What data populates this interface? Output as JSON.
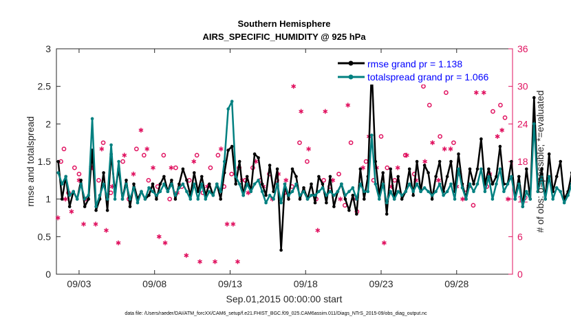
{
  "chart_data": {
    "type": "line",
    "title": "Southern Hemisphere",
    "subtitle": "AIRS_SPECIFIC_HUMIDITY @ 925 hPa",
    "xlabel": "Sep.01,2015 00:00:00 start",
    "ylabel": "rmse and totalspread",
    "y2label": "# of obs: o=possible; *=evaluated",
    "footnote": "data file: /Users/raeder/DAI/ATM_forcXX/CAM6_setup/f.e21.FHIST_BGC.f09_025.CAM6assim.011/Diags_NTrS_2015-09/obs_diag_output.nc",
    "xlim": [
      1.5,
      31.7
    ],
    "ylim": [
      0,
      3
    ],
    "y2lim": [
      0,
      36
    ],
    "xticks": [
      3,
      8,
      13,
      18,
      23,
      28
    ],
    "xticklabels": [
      "09/03",
      "09/08",
      "09/13",
      "09/18",
      "09/23",
      "09/28"
    ],
    "yticks": [
      0,
      0.5,
      1,
      1.5,
      2,
      2.5,
      3
    ],
    "yticklabels": [
      "0",
      "0.5",
      "1",
      "1.5",
      "2",
      "2.5",
      "3"
    ],
    "y2ticks": [
      0,
      6,
      12,
      18,
      24,
      30,
      36
    ],
    "y2ticklabels": [
      "0",
      "6",
      "12",
      "18",
      "24",
      "30",
      "36"
    ],
    "legend": {
      "placement": "top-right",
      "entries": [
        "rmse grand pr = 1.138",
        "totalspread grand pr = 1.066"
      ]
    },
    "colors": {
      "rmse": "#000000",
      "totalspread": "#008080",
      "obs": "#e0115f",
      "legend_text": "#0000ff",
      "axis": "#262626"
    },
    "x_start": 1.625,
    "x_step": 0.25,
    "series": [
      {
        "name": "rmse",
        "values": [
          1.5,
          1.0,
          1.3,
          0.9,
          1.1,
          1.0,
          1.25,
          0.9,
          1.0,
          1.65,
          0.85,
          1.0,
          1.35,
          0.85,
          1.6,
          1.1,
          1.4,
          1.0,
          1.25,
          0.9,
          1.2,
          1.0,
          1.1,
          1.0,
          1.05,
          1.2,
          1.0,
          1.2,
          1.3,
          1.1,
          1.25,
          1.0,
          1.2,
          1.4,
          1.25,
          1.05,
          1.35,
          1.1,
          1.3,
          1.05,
          1.2,
          1.05,
          1.2,
          1.0,
          1.35,
          1.65,
          1.7,
          1.2,
          1.5,
          1.05,
          1.3,
          1.1,
          1.6,
          1.55,
          1.2,
          1.05,
          1.45,
          1.1,
          1.4,
          0.32,
          1.2,
          1.0,
          1.4,
          1.3,
          1.0,
          1.15,
          1.0,
          1.2,
          0.95,
          1.3,
          1.2,
          0.95,
          1.3,
          0.9,
          1.1,
          1.2,
          1.0,
          0.85,
          1.05,
          0.8,
          1.4,
          1.0,
          1.3,
          2.75,
          1.5,
          1.05,
          1.35,
          0.8,
          1.4,
          1.0,
          1.3,
          1.0,
          1.1,
          1.4,
          1.05,
          1.5,
          1.1,
          1.45,
          1.35,
          1.0,
          1.3,
          1.5,
          1.1,
          1.3,
          1.5,
          1.1,
          1.6,
          1.2,
          1.0,
          1.4,
          1.2,
          1.4,
          1.8,
          1.2,
          1.4,
          1.2,
          1.3,
          1.7,
          1.2,
          1.2,
          1.5,
          1.0,
          1.3,
          0.9,
          1.4,
          1.0,
          2.35,
          1.1,
          1.4,
          1.0,
          1.6,
          1.1,
          1.3,
          1.5,
          1.0,
          1.1,
          1.35,
          0.95,
          1.3,
          0.9,
          1.2,
          0.85,
          1.25,
          0.95,
          1.2,
          0.75,
          1.25,
          0.85,
          1.2,
          0.8,
          1.15
        ]
      },
      {
        "name": "totalspread",
        "values": [
          1.35,
          1.2,
          1.3,
          1.05,
          1.1,
          1.0,
          1.2,
          1.0,
          1.05,
          2.07,
          0.9,
          1.05,
          1.2,
          1.0,
          1.72,
          1.0,
          1.5,
          1.0,
          1.2,
          1.0,
          1.15,
          0.95,
          1.1,
          1.0,
          1.15,
          1.1,
          1.05,
          1.1,
          1.2,
          1.1,
          1.2,
          1.05,
          1.15,
          1.2,
          1.1,
          1.0,
          1.2,
          1.0,
          1.2,
          1.0,
          1.1,
          1.05,
          1.2,
          1.1,
          1.5,
          2.2,
          2.3,
          1.3,
          1.2,
          1.05,
          1.2,
          1.1,
          1.2,
          1.25,
          1.1,
          0.95,
          1.05,
          1.0,
          1.2,
          0.95,
          1.2,
          1.05,
          1.1,
          1.2,
          1.05,
          1.1,
          1.0,
          1.05,
          1.05,
          1.1,
          1.15,
          1.05,
          1.1,
          1.05,
          1.1,
          1.2,
          1.05,
          1.1,
          1.15,
          1.0,
          1.2,
          1.1,
          1.1,
          1.85,
          1.2,
          1.0,
          1.2,
          0.95,
          1.1,
          1.0,
          1.1,
          1.05,
          1.1,
          1.2,
          1.1,
          1.2,
          1.1,
          1.15,
          1.1,
          1.05,
          1.1,
          1.2,
          1.05,
          1.1,
          1.2,
          1.0,
          1.4,
          1.15,
          1.0,
          1.2,
          1.1,
          1.2,
          1.4,
          1.1,
          1.3,
          1.0,
          1.2,
          1.4,
          1.1,
          1.2,
          1.3,
          1.0,
          1.2,
          0.9,
          1.1,
          1.0,
          2.0,
          1.1,
          1.3,
          1.0,
          1.3,
          1.0,
          1.15,
          1.1,
          0.95,
          1.05,
          1.2,
          0.9,
          1.1,
          0.95,
          1.15,
          0.9,
          1.1,
          0.95,
          1.6,
          0.9,
          1.3,
          1.0,
          1.2,
          1.1,
          1.75
        ]
      }
    ],
    "obs_possible": [
      {
        "x": 1.8,
        "y": 18
      },
      {
        "x": 2.0,
        "y": 20
      },
      {
        "x": 2.3,
        "y": 13
      },
      {
        "x": 2.7,
        "y": 17
      },
      {
        "x": 3.0,
        "y": 16
      },
      {
        "x": 3.4,
        "y": 12
      },
      {
        "x": 3.9,
        "y": 17
      },
      {
        "x": 4.3,
        "y": 15
      },
      {
        "x": 4.6,
        "y": 21
      },
      {
        "x": 5.1,
        "y": 13
      },
      {
        "x": 5.9,
        "y": 18
      },
      {
        "x": 6.3,
        "y": 12
      },
      {
        "x": 6.8,
        "y": 20
      },
      {
        "x": 7.3,
        "y": 19
      },
      {
        "x": 7.6,
        "y": 15
      },
      {
        "x": 8.2,
        "y": 14
      },
      {
        "x": 8.6,
        "y": 19
      },
      {
        "x": 9.0,
        "y": 12
      },
      {
        "x": 9.4,
        "y": 17
      },
      {
        "x": 9.8,
        "y": 14
      },
      {
        "x": 10.3,
        "y": 15
      },
      {
        "x": 10.8,
        "y": 19
      },
      {
        "x": 11.2,
        "y": 13
      },
      {
        "x": 11.7,
        "y": 17
      },
      {
        "x": 12.2,
        "y": 19
      },
      {
        "x": 12.6,
        "y": 14
      },
      {
        "x": 13.1,
        "y": 16
      },
      {
        "x": 13.6,
        "y": 17
      },
      {
        "x": 14.0,
        "y": 15
      },
      {
        "x": 14.5,
        "y": 17
      },
      {
        "x": 15.0,
        "y": 15
      },
      {
        "x": 15.6,
        "y": 16
      },
      {
        "x": 16.1,
        "y": 15
      },
      {
        "x": 16.6,
        "y": 13
      },
      {
        "x": 17.1,
        "y": 14
      },
      {
        "x": 17.6,
        "y": 21
      },
      {
        "x": 18.1,
        "y": 18
      },
      {
        "x": 18.7,
        "y": 12
      },
      {
        "x": 19.2,
        "y": 15
      },
      {
        "x": 19.6,
        "y": 14
      },
      {
        "x": 20.2,
        "y": 16
      },
      {
        "x": 20.6,
        "y": 11
      },
      {
        "x": 21.0,
        "y": 21
      },
      {
        "x": 21.4,
        "y": 10
      },
      {
        "x": 22.0,
        "y": 18
      },
      {
        "x": 22.5,
        "y": 15
      },
      {
        "x": 23.0,
        "y": 22
      },
      {
        "x": 23.4,
        "y": 17
      },
      {
        "x": 23.9,
        "y": 15
      },
      {
        "x": 24.6,
        "y": 19
      },
      {
        "x": 25.2,
        "y": 16
      },
      {
        "x": 25.8,
        "y": 30
      },
      {
        "x": 26.2,
        "y": 27
      },
      {
        "x": 26.9,
        "y": 22
      },
      {
        "x": 27.3,
        "y": 29
      },
      {
        "x": 27.8,
        "y": 21
      },
      {
        "x": 28.2,
        "y": 16
      },
      {
        "x": 28.6,
        "y": 13
      },
      {
        "x": 29.1,
        "y": 11
      },
      {
        "x": 29.6,
        "y": 32
      },
      {
        "x": 30.0,
        "y": 14
      },
      {
        "x": 30.4,
        "y": 26
      },
      {
        "x": 30.9,
        "y": 27
      },
      {
        "x": 31.2,
        "y": 25
      }
    ],
    "obs_evaluated": [
      {
        "x": 1.6,
        "y": 9
      },
      {
        "x": 2.1,
        "y": 12
      },
      {
        "x": 2.5,
        "y": 10
      },
      {
        "x": 3.0,
        "y": 15
      },
      {
        "x": 3.3,
        "y": 8
      },
      {
        "x": 3.8,
        "y": 17
      },
      {
        "x": 4.1,
        "y": 8
      },
      {
        "x": 4.5,
        "y": 20
      },
      {
        "x": 4.8,
        "y": 7
      },
      {
        "x": 5.2,
        "y": 14
      },
      {
        "x": 5.6,
        "y": 5
      },
      {
        "x": 6.0,
        "y": 19
      },
      {
        "x": 6.6,
        "y": 16
      },
      {
        "x": 7.1,
        "y": 23
      },
      {
        "x": 7.5,
        "y": 20
      },
      {
        "x": 7.9,
        "y": 17
      },
      {
        "x": 8.3,
        "y": 6
      },
      {
        "x": 8.7,
        "y": 5
      },
      {
        "x": 9.1,
        "y": 17
      },
      {
        "x": 9.5,
        "y": 13
      },
      {
        "x": 10.1,
        "y": 3
      },
      {
        "x": 10.6,
        "y": 18
      },
      {
        "x": 11.0,
        "y": 2
      },
      {
        "x": 11.5,
        "y": 14
      },
      {
        "x": 12.0,
        "y": 2
      },
      {
        "x": 12.4,
        "y": 20
      },
      {
        "x": 12.8,
        "y": 8
      },
      {
        "x": 13.2,
        "y": 8
      },
      {
        "x": 13.5,
        "y": 2
      },
      {
        "x": 13.8,
        "y": 15
      },
      {
        "x": 14.2,
        "y": 13
      },
      {
        "x": 14.7,
        "y": 18
      },
      {
        "x": 15.2,
        "y": 14
      },
      {
        "x": 15.8,
        "y": 12
      },
      {
        "x": 16.2,
        "y": 16
      },
      {
        "x": 16.7,
        "y": 15
      },
      {
        "x": 17.2,
        "y": 30
      },
      {
        "x": 17.7,
        "y": 26
      },
      {
        "x": 18.2,
        "y": 20
      },
      {
        "x": 18.8,
        "y": 7
      },
      {
        "x": 19.3,
        "y": 26
      },
      {
        "x": 19.8,
        "y": 15
      },
      {
        "x": 20.3,
        "y": 12
      },
      {
        "x": 20.8,
        "y": 27
      },
      {
        "x": 21.2,
        "y": 12
      },
      {
        "x": 21.8,
        "y": 17
      },
      {
        "x": 22.2,
        "y": 22
      },
      {
        "x": 22.7,
        "y": 17
      },
      {
        "x": 23.2,
        "y": 5
      },
      {
        "x": 23.7,
        "y": 14
      },
      {
        "x": 24.1,
        "y": 17
      },
      {
        "x": 24.7,
        "y": 19
      },
      {
        "x": 25.3,
        "y": 15
      },
      {
        "x": 25.9,
        "y": 18
      },
      {
        "x": 26.4,
        "y": 21
      },
      {
        "x": 26.8,
        "y": 15
      },
      {
        "x": 27.2,
        "y": 20
      },
      {
        "x": 27.6,
        "y": 20
      },
      {
        "x": 28.0,
        "y": 14
      },
      {
        "x": 28.4,
        "y": 12
      },
      {
        "x": 28.8,
        "y": 14
      },
      {
        "x": 29.3,
        "y": 29
      },
      {
        "x": 29.8,
        "y": 29
      },
      {
        "x": 30.2,
        "y": 16
      },
      {
        "x": 30.7,
        "y": 22
      },
      {
        "x": 31.0,
        "y": 23
      },
      {
        "x": 31.4,
        "y": 12
      }
    ]
  }
}
